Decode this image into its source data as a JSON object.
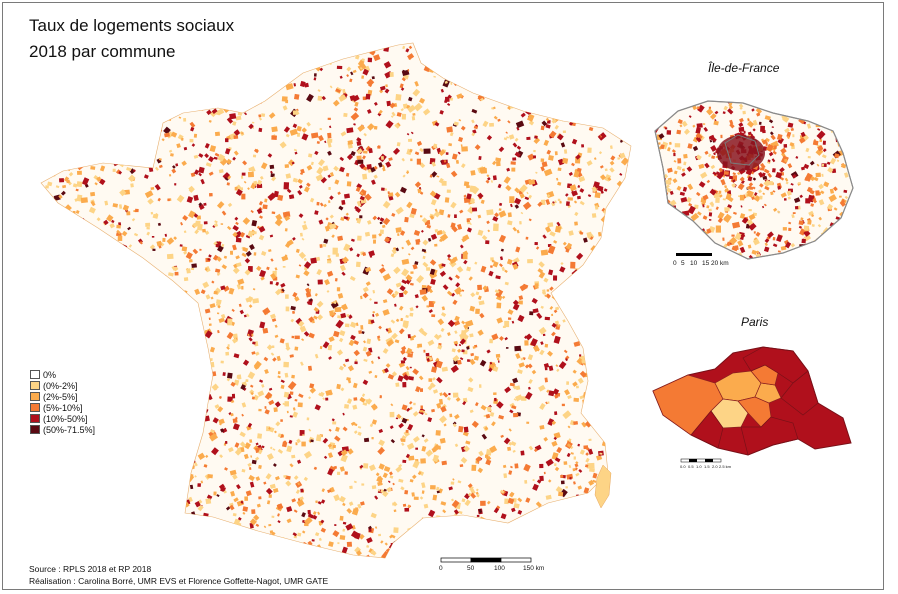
{
  "title_line1": "Taux de logements sociaux",
  "title_line2": "2018 par commune",
  "inset_idf_title": "Île-de-France",
  "inset_paris_title": "Paris",
  "legend": [
    {
      "label": "0%",
      "color": "#ffffff"
    },
    {
      "label": "(0%-2%]",
      "color": "#fdd486"
    },
    {
      "label": "(2%-5%]",
      "color": "#fbab4d"
    },
    {
      "label": "(5%-10%]",
      "color": "#f47a34"
    },
    {
      "label": "(10%-50%]",
      "color": "#b0101c"
    },
    {
      "label": "(50%-71.5%]",
      "color": "#5a0a12"
    }
  ],
  "source_line1": "Source : RPLS 2018 et RP 2018",
  "source_line2": "Réalisation : Carolina Borré, UMR EVS et Florence Goffette-Nagot, UMR GATE",
  "scale_main": {
    "ticks": [
      "0",
      "50",
      "100",
      "150 km"
    ]
  },
  "scale_idf": {
    "ticks": [
      "0",
      "5",
      "10",
      "15",
      "20 km"
    ]
  },
  "scale_paris": {
    "ticks": [
      "0.0",
      "0.5",
      "1.0",
      "1.5",
      "2.0",
      "2.5 km"
    ]
  }
}
